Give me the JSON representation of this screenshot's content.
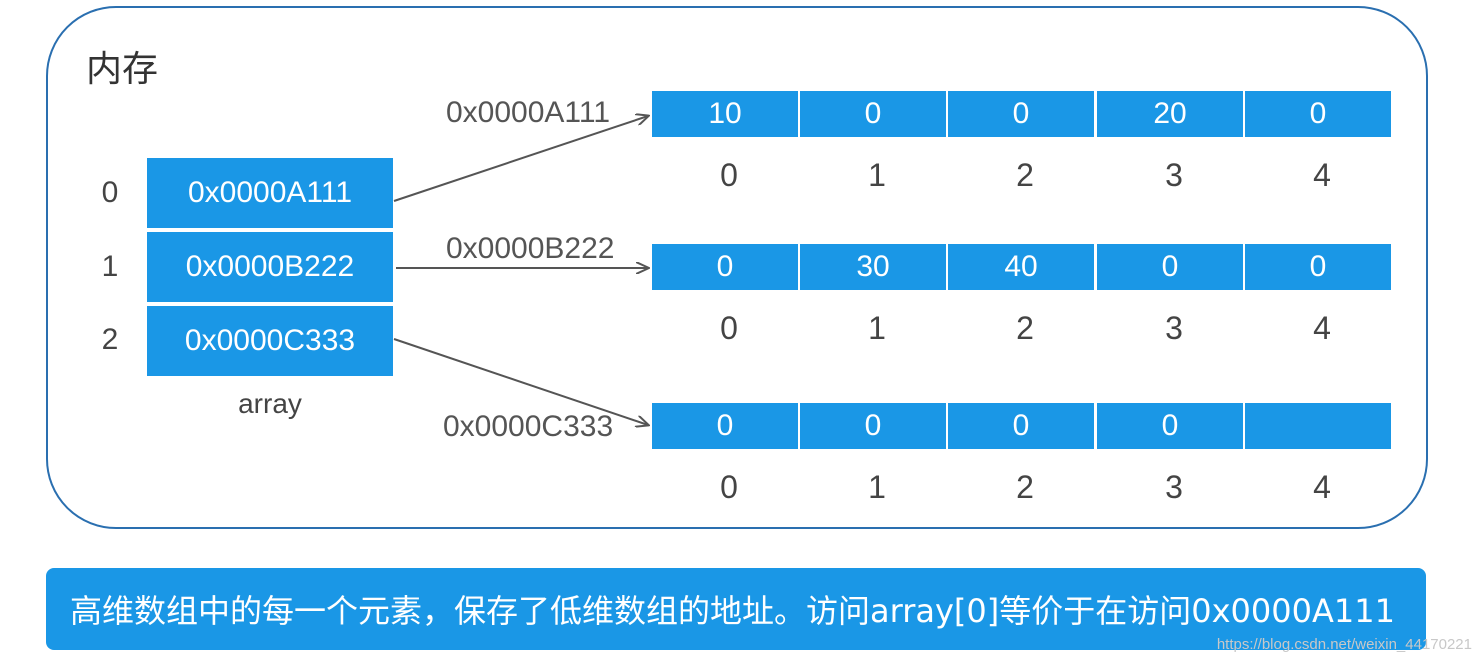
{
  "title": "内存",
  "pointer_array": {
    "name": "array",
    "indices": [
      "0",
      "1",
      "2"
    ],
    "cells": [
      "0x0000A111",
      "0x0000B222",
      "0x0000C333"
    ]
  },
  "rows": [
    {
      "address": "0x0000A111",
      "values": [
        "10",
        "0",
        "0",
        "20",
        "0"
      ]
    },
    {
      "address": "0x0000B222",
      "values": [
        "0",
        "30",
        "40",
        "0",
        "0"
      ]
    },
    {
      "address": "0x0000C333",
      "values": [
        "0",
        "0",
        "0",
        "0",
        ""
      ]
    }
  ],
  "column_indices": [
    "0",
    "1",
    "2",
    "3",
    "4"
  ],
  "caption": "高维数组中的每一个元素，保存了低维数组的地址。访问array[0]等价于在访问0x0000A111",
  "watermark": "https://blog.csdn.net/weixin_44170221",
  "colors": {
    "cell_fill": "#1a97e6",
    "frame": "#2a6fb0",
    "arrow": "#555555"
  }
}
